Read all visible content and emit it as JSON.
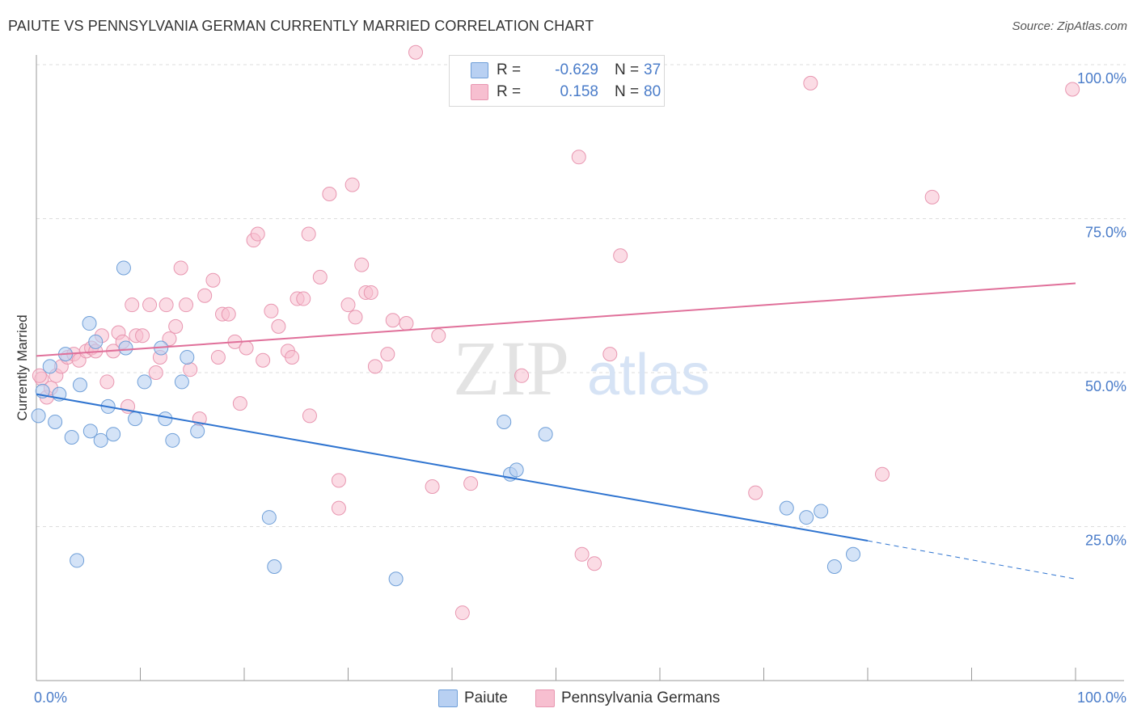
{
  "title": "PAIUTE VS PENNSYLVANIA GERMAN CURRENTLY MARRIED CORRELATION CHART",
  "source": "Source: ZipAtlas.com",
  "watermark": {
    "zip": "ZIP",
    "atlas": "atlas"
  },
  "colors": {
    "paiute_fill": "#b8d0f2",
    "paiute_stroke": "#6f9fd8",
    "paiute_line": "#2f74d0",
    "pg_fill": "#f7bfd0",
    "pg_stroke": "#e896b0",
    "pg_line": "#e0709a",
    "tick_label": "#4a7cc9",
    "grid": "#dddddd"
  },
  "legend_top": {
    "rows": [
      {
        "label": "R =",
        "r": "-0.629",
        "n_label": "N =",
        "n": "37"
      },
      {
        "label": "R =",
        "r": "0.158",
        "n_label": "N =",
        "n": "80"
      }
    ]
  },
  "legend_bottom": [
    "Paiute",
    "Pennsylvania Germans"
  ],
  "chart_data": {
    "type": "scatter",
    "title": "PAIUTE VS PENNSYLVANIA GERMAN CURRENTLY MARRIED CORRELATION CHART",
    "xlabel": "",
    "ylabel": "Currently Married",
    "xlim": [
      0,
      100
    ],
    "ylim": [
      0,
      100
    ],
    "x_tick_labels": [
      "0.0%",
      "100.0%"
    ],
    "y_tick_values": [
      25,
      50,
      75,
      100
    ],
    "y_tick_labels": [
      "25.0%",
      "50.0%",
      "75.0%",
      "100.0%"
    ],
    "grid": true,
    "legend_position": "bottom",
    "series": [
      {
        "name": "Paiute",
        "r": -0.629,
        "n": 37,
        "trend": {
          "x0": 0,
          "y0": 46.5,
          "x1": 80,
          "y1": 22.7,
          "dash_to_x": 100,
          "dash_to_y": 16.5
        },
        "points": [
          [
            0.2,
            43.0
          ],
          [
            0.6,
            47.0
          ],
          [
            1.3,
            51.0
          ],
          [
            1.8,
            42.0
          ],
          [
            2.2,
            46.5
          ],
          [
            2.8,
            53.0
          ],
          [
            3.4,
            39.5
          ],
          [
            4.2,
            48.0
          ],
          [
            5.1,
            58.0
          ],
          [
            5.2,
            40.5
          ],
          [
            5.7,
            55.0
          ],
          [
            6.2,
            39.0
          ],
          [
            6.9,
            44.5
          ],
          [
            7.4,
            40.0
          ],
          [
            8.4,
            67.0
          ],
          [
            8.6,
            54.0
          ],
          [
            9.5,
            42.5
          ],
          [
            10.4,
            48.5
          ],
          [
            12.0,
            54.0
          ],
          [
            12.4,
            42.5
          ],
          [
            13.1,
            39.0
          ],
          [
            14.0,
            48.5
          ],
          [
            14.5,
            52.5
          ],
          [
            15.5,
            40.5
          ],
          [
            3.9,
            19.5
          ],
          [
            22.4,
            26.5
          ],
          [
            22.9,
            18.5
          ],
          [
            34.6,
            16.5
          ],
          [
            45.0,
            42.0
          ],
          [
            45.6,
            33.5
          ],
          [
            46.2,
            34.2
          ],
          [
            49.0,
            40.0
          ],
          [
            72.2,
            28.0
          ],
          [
            74.1,
            26.5
          ],
          [
            75.5,
            27.5
          ],
          [
            76.8,
            18.5
          ],
          [
            78.6,
            20.5
          ]
        ]
      },
      {
        "name": "Pennsylvania Germans",
        "r": 0.158,
        "n": 80,
        "trend": {
          "x0": 0,
          "y0": 52.7,
          "x1": 100,
          "y1": 64.5
        },
        "points": [
          [
            0.5,
            49.0
          ],
          [
            1.0,
            46.0
          ],
          [
            1.4,
            47.5
          ],
          [
            1.9,
            49.5
          ],
          [
            2.4,
            51.0
          ],
          [
            3.0,
            52.5
          ],
          [
            3.6,
            53.0
          ],
          [
            4.1,
            52.0
          ],
          [
            4.8,
            53.5
          ],
          [
            5.3,
            54.0
          ],
          [
            5.7,
            53.5
          ],
          [
            6.3,
            56.0
          ],
          [
            6.8,
            48.5
          ],
          [
            7.4,
            53.5
          ],
          [
            7.9,
            56.5
          ],
          [
            8.3,
            55.0
          ],
          [
            8.8,
            44.5
          ],
          [
            9.2,
            61.0
          ],
          [
            9.6,
            56.0
          ],
          [
            10.2,
            56.0
          ],
          [
            10.9,
            61.0
          ],
          [
            11.5,
            50.0
          ],
          [
            11.9,
            52.5
          ],
          [
            12.5,
            61.0
          ],
          [
            12.8,
            55.5
          ],
          [
            13.4,
            57.5
          ],
          [
            13.9,
            67.0
          ],
          [
            14.4,
            61.0
          ],
          [
            14.8,
            50.5
          ],
          [
            15.7,
            42.5
          ],
          [
            16.2,
            62.5
          ],
          [
            17.0,
            65.0
          ],
          [
            17.5,
            52.5
          ],
          [
            17.9,
            59.5
          ],
          [
            18.5,
            59.5
          ],
          [
            19.1,
            55.0
          ],
          [
            19.6,
            45.0
          ],
          [
            20.2,
            54.0
          ],
          [
            20.9,
            71.5
          ],
          [
            21.3,
            72.5
          ],
          [
            21.8,
            52.0
          ],
          [
            22.6,
            60.0
          ],
          [
            23.3,
            57.5
          ],
          [
            24.2,
            53.5
          ],
          [
            24.6,
            52.5
          ],
          [
            25.1,
            62.0
          ],
          [
            25.7,
            62.0
          ],
          [
            26.2,
            72.5
          ],
          [
            26.3,
            43.0
          ],
          [
            27.3,
            65.5
          ],
          [
            28.2,
            79.0
          ],
          [
            29.1,
            32.5
          ],
          [
            29.1,
            28.0
          ],
          [
            30.0,
            61.0
          ],
          [
            30.4,
            80.5
          ],
          [
            30.7,
            59.0
          ],
          [
            31.3,
            67.5
          ],
          [
            31.7,
            63.0
          ],
          [
            32.2,
            63.0
          ],
          [
            32.6,
            51.0
          ],
          [
            33.8,
            53.0
          ],
          [
            34.3,
            58.5
          ],
          [
            35.6,
            58.0
          ],
          [
            38.1,
            31.5
          ],
          [
            38.7,
            56.0
          ],
          [
            41.0,
            11.0
          ],
          [
            41.8,
            32.0
          ],
          [
            46.7,
            49.5
          ],
          [
            52.2,
            85.0
          ],
          [
            52.5,
            20.5
          ],
          [
            53.7,
            19.0
          ],
          [
            55.2,
            53.0
          ],
          [
            56.2,
            69.0
          ],
          [
            69.2,
            30.5
          ],
          [
            74.5,
            97.0
          ],
          [
            81.4,
            33.5
          ],
          [
            86.2,
            78.5
          ],
          [
            99.7,
            96.0
          ],
          [
            36.5,
            102.0
          ],
          [
            0.3,
            49.5
          ]
        ]
      }
    ]
  }
}
